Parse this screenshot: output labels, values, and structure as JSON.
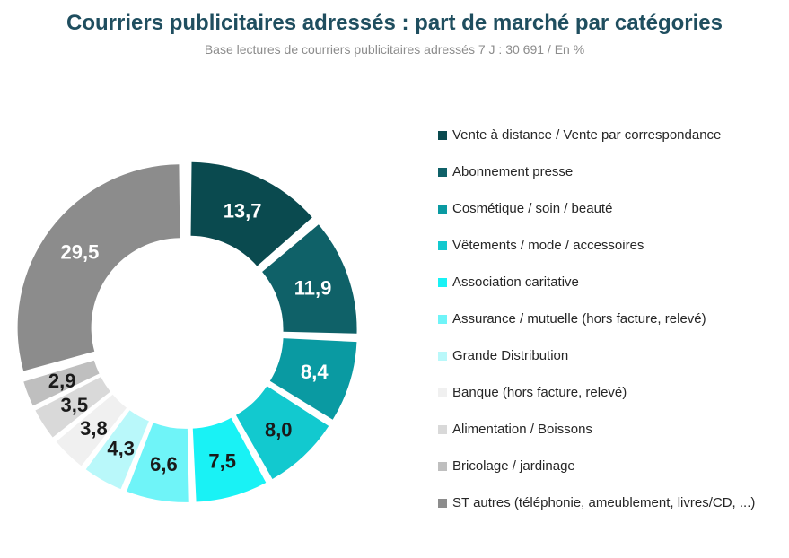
{
  "chart_data": {
    "type": "pie",
    "title": "Courriers publicitaires adressés : part de marché par catégories",
    "subtitle": "Base lectures de courriers publicitaires adressés  7 J : 30 691 / En %",
    "variant": "donut",
    "legend_position": "right",
    "slices": [
      {
        "label": "Vente à distance / Vente par correspondance",
        "value": 13.7,
        "display": "13,7",
        "color": "#0a4a4f",
        "text_color": "#ffffff"
      },
      {
        "label": "Abonnement presse",
        "value": 11.9,
        "display": "11,9",
        "color": "#0f6168",
        "text_color": "#ffffff"
      },
      {
        "label": "Cosmétique / soin / beauté",
        "value": 8.4,
        "display": "8,4",
        "color": "#0a9aa2",
        "text_color": "#ffffff"
      },
      {
        "label": "Vêtements / mode / accessoires",
        "value": 8.0,
        "display": "8,0",
        "color": "#12c9cf",
        "text_color": "#1a1a1a"
      },
      {
        "label": "Association caritative",
        "value": 7.5,
        "display": "7,5",
        "color": "#19f2f5",
        "text_color": "#1a1a1a"
      },
      {
        "label": "Assurance / mutuelle (hors facture, relevé)",
        "value": 6.6,
        "display": "6,6",
        "color": "#6ff4f8",
        "text_color": "#1a1a1a"
      },
      {
        "label": "Grande Distribution",
        "value": 4.3,
        "display": "4,3",
        "color": "#b9f8fa",
        "text_color": "#1a1a1a"
      },
      {
        "label": "Banque (hors facture, relevé)",
        "value": 3.8,
        "display": "3,8",
        "color": "#f0f0f0",
        "text_color": "#1a1a1a"
      },
      {
        "label": "Alimentation / Boissons",
        "value": 3.5,
        "display": "3,5",
        "color": "#d9d9d9",
        "text_color": "#1a1a1a"
      },
      {
        "label": "Bricolage / jardinage",
        "value": 2.9,
        "display": "2,9",
        "color": "#bfbfbf",
        "text_color": "#1a1a1a"
      },
      {
        "label": "ST autres (téléphonie, ameublement, livres/CD, ...)",
        "value": 29.5,
        "display": "29,5",
        "color": "#8c8c8c",
        "text_color": "#ffffff"
      }
    ]
  }
}
